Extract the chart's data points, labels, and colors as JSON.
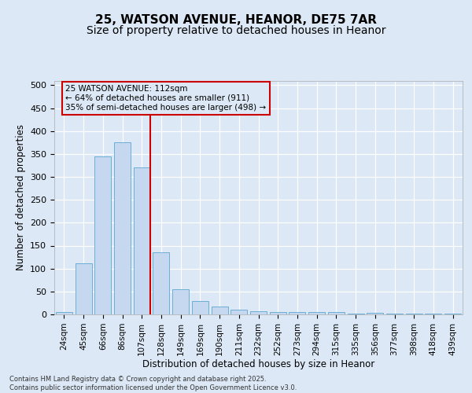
{
  "title_line1": "25, WATSON AVENUE, HEANOR, DE75 7AR",
  "title_line2": "Size of property relative to detached houses in Heanor",
  "xlabel": "Distribution of detached houses by size in Heanor",
  "ylabel": "Number of detached properties",
  "categories": [
    "24sqm",
    "45sqm",
    "66sqm",
    "86sqm",
    "107sqm",
    "128sqm",
    "149sqm",
    "169sqm",
    "190sqm",
    "211sqm",
    "232sqm",
    "252sqm",
    "273sqm",
    "294sqm",
    "315sqm",
    "335sqm",
    "356sqm",
    "377sqm",
    "398sqm",
    "418sqm",
    "439sqm"
  ],
  "values": [
    5,
    112,
    345,
    375,
    320,
    135,
    55,
    30,
    18,
    10,
    7,
    5,
    5,
    5,
    5,
    2,
    3,
    2,
    2,
    2,
    2
  ],
  "bar_color": "#c5d8ef",
  "bar_edge_color": "#6baed6",
  "vline_color": "#cc0000",
  "vline_index": 4,
  "annotation_text": "25 WATSON AVENUE: 112sqm\n← 64% of detached houses are smaller (911)\n35% of semi-detached houses are larger (498) →",
  "annotation_box_edgecolor": "#cc0000",
  "annotation_fontsize": 7.5,
  "ylim_max": 510,
  "yticks": [
    0,
    50,
    100,
    150,
    200,
    250,
    300,
    350,
    400,
    450,
    500
  ],
  "bg_color": "#dce8f5",
  "grid_color": "#ffffff",
  "footer": "Contains HM Land Registry data © Crown copyright and database right 2025.\nContains public sector information licensed under the Open Government Licence v3.0."
}
